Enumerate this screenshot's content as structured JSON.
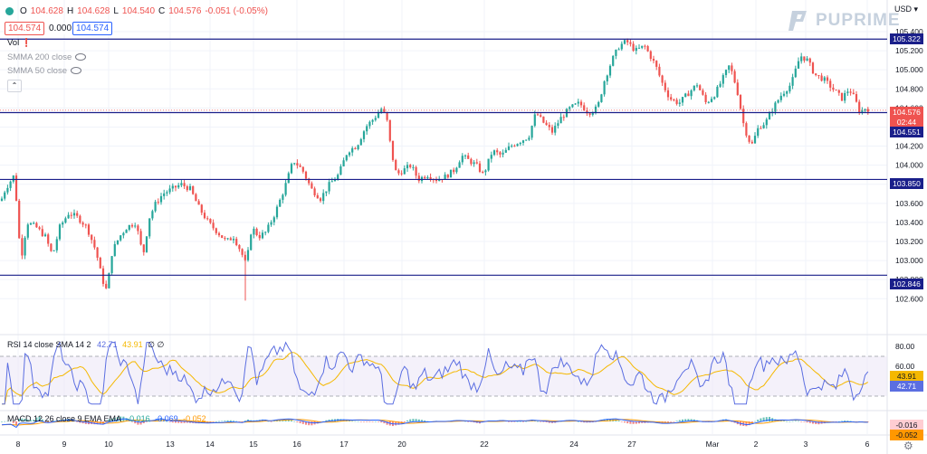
{
  "header": {
    "open_label": "O",
    "open": "104.628",
    "high_label": "H",
    "high": "104.628",
    "low_label": "L",
    "low": "104.540",
    "close_label": "C",
    "close": "104.576",
    "change": "-0.051 (-0.05%)",
    "bid": "104.574",
    "spread": "0.000",
    "ask": "104.574",
    "currency": "USD"
  },
  "indicators": {
    "vol": "Vol",
    "smma200": "SMMA 200 close",
    "smma50": "SMMA 50 close"
  },
  "logo": {
    "text": "PUPRIME"
  },
  "chart_data": {
    "type": "candlestick",
    "price_axis": {
      "ticks": [
        "105.400",
        "105.200",
        "105.000",
        "104.800",
        "104.600",
        "104.400",
        "104.200",
        "104.000",
        "103.800",
        "103.600",
        "103.400",
        "103.200",
        "103.000",
        "102.800",
        "102.600"
      ],
      "range": [
        102.5,
        105.45
      ]
    },
    "x_ticks": [
      "8",
      "9",
      "10",
      "13",
      "14",
      "15",
      "16",
      "17",
      "20",
      "22",
      "24",
      "27",
      "Mar",
      "2",
      "3",
      "6"
    ],
    "horizontal_levels": [
      105.322,
      104.551,
      103.85,
      102.846
    ],
    "last_price": "104.576",
    "countdown": "02:44",
    "level_labels": [
      "105.322",
      "104.551",
      "103.850",
      "102.846"
    ],
    "ohlc_path": [
      [
        0,
        103.6
      ],
      [
        6,
        103.75
      ],
      [
        16,
        103.9
      ],
      [
        23,
        103.0
      ],
      [
        30,
        103.4
      ],
      [
        40,
        103.35
      ],
      [
        50,
        103.25
      ],
      [
        58,
        103.05
      ],
      [
        66,
        103.35
      ],
      [
        76,
        103.5
      ],
      [
        86,
        103.45
      ],
      [
        96,
        103.35
      ],
      [
        106,
        103.1
      ],
      [
        113,
        102.8
      ],
      [
        118,
        102.68
      ],
      [
        124,
        103.1
      ],
      [
        132,
        103.25
      ],
      [
        140,
        103.35
      ],
      [
        150,
        103.4
      ],
      [
        158,
        103.05
      ],
      [
        165,
        103.45
      ],
      [
        172,
        103.6
      ],
      [
        180,
        103.7
      ],
      [
        190,
        103.75
      ],
      [
        200,
        103.8
      ],
      [
        210,
        103.75
      ],
      [
        220,
        103.55
      ],
      [
        230,
        103.4
      ],
      [
        240,
        103.3
      ],
      [
        250,
        103.2
      ],
      [
        258,
        103.25
      ],
      [
        266,
        103.1
      ],
      [
        272,
        102.95
      ],
      [
        278,
        103.35
      ],
      [
        286,
        103.25
      ],
      [
        294,
        103.3
      ],
      [
        304,
        103.5
      ],
      [
        314,
        103.75
      ],
      [
        324,
        104.05
      ],
      [
        334,
        103.95
      ],
      [
        344,
        103.75
      ],
      [
        354,
        103.65
      ],
      [
        364,
        103.8
      ],
      [
        374,
        103.9
      ],
      [
        384,
        104.15
      ],
      [
        394,
        104.2
      ],
      [
        404,
        104.4
      ],
      [
        414,
        104.5
      ],
      [
        422,
        104.6
      ],
      [
        428,
        104.45
      ],
      [
        432,
        104.15
      ],
      [
        438,
        103.9
      ],
      [
        446,
        103.95
      ],
      [
        454,
        104.0
      ],
      [
        462,
        103.85
      ],
      [
        472,
        103.9
      ],
      [
        482,
        103.85
      ],
      [
        492,
        103.88
      ],
      [
        502,
        103.95
      ],
      [
        510,
        104.1
      ],
      [
        518,
        104.05
      ],
      [
        526,
        104.0
      ],
      [
        534,
        103.9
      ],
      [
        544,
        104.15
      ],
      [
        554,
        104.1
      ],
      [
        564,
        104.2
      ],
      [
        574,
        104.25
      ],
      [
        584,
        104.3
      ],
      [
        592,
        104.55
      ],
      [
        600,
        104.45
      ],
      [
        610,
        104.35
      ],
      [
        620,
        104.5
      ],
      [
        630,
        104.6
      ],
      [
        640,
        104.65
      ],
      [
        650,
        104.55
      ],
      [
        660,
        104.6
      ],
      [
        668,
        104.9
      ],
      [
        676,
        105.1
      ],
      [
        684,
        105.25
      ],
      [
        692,
        105.3
      ],
      [
        702,
        105.2
      ],
      [
        712,
        105.25
      ],
      [
        718,
        105.15
      ],
      [
        724,
        105.05
      ],
      [
        732,
        104.85
      ],
      [
        740,
        104.7
      ],
      [
        750,
        104.65
      ],
      [
        760,
        104.75
      ],
      [
        770,
        104.85
      ],
      [
        780,
        104.65
      ],
      [
        790,
        104.75
      ],
      [
        798,
        104.9
      ],
      [
        806,
        105.05
      ],
      [
        814,
        104.8
      ],
      [
        822,
        104.4
      ],
      [
        830,
        104.2
      ],
      [
        838,
        104.4
      ],
      [
        846,
        104.45
      ],
      [
        854,
        104.6
      ],
      [
        864,
        104.75
      ],
      [
        874,
        104.85
      ],
      [
        884,
        105.15
      ],
      [
        892,
        105.1
      ],
      [
        900,
        104.95
      ],
      [
        910,
        104.9
      ],
      [
        920,
        104.8
      ],
      [
        930,
        104.7
      ],
      [
        938,
        104.8
      ],
      [
        944,
        104.7
      ],
      [
        950,
        104.55
      ],
      [
        956,
        104.6
      ],
      [
        962,
        104.58
      ]
    ],
    "rsi": {
      "label": "RSI 14 close SMA 14 2",
      "value": "42.71",
      "sma": "43.91",
      "extra": "∅ ∅",
      "ticks": [
        "80.00",
        "60.00"
      ],
      "upper_band": 70,
      "lower_band": 30
    },
    "macd": {
      "label": "MACD 12 26 close 9 EMA EMA",
      "values": [
        "-0.016",
        "-0.069",
        "-0.052"
      ],
      "axis_labels": [
        "-0.016",
        "-0.052"
      ]
    },
    "colors": {
      "up": "#26a69a",
      "down": "#ef5350",
      "level": "#1a1f8a",
      "rsi": "#5b6ee1",
      "rsi_sma": "#f5b800",
      "price_tag": "#ef5350"
    }
  }
}
